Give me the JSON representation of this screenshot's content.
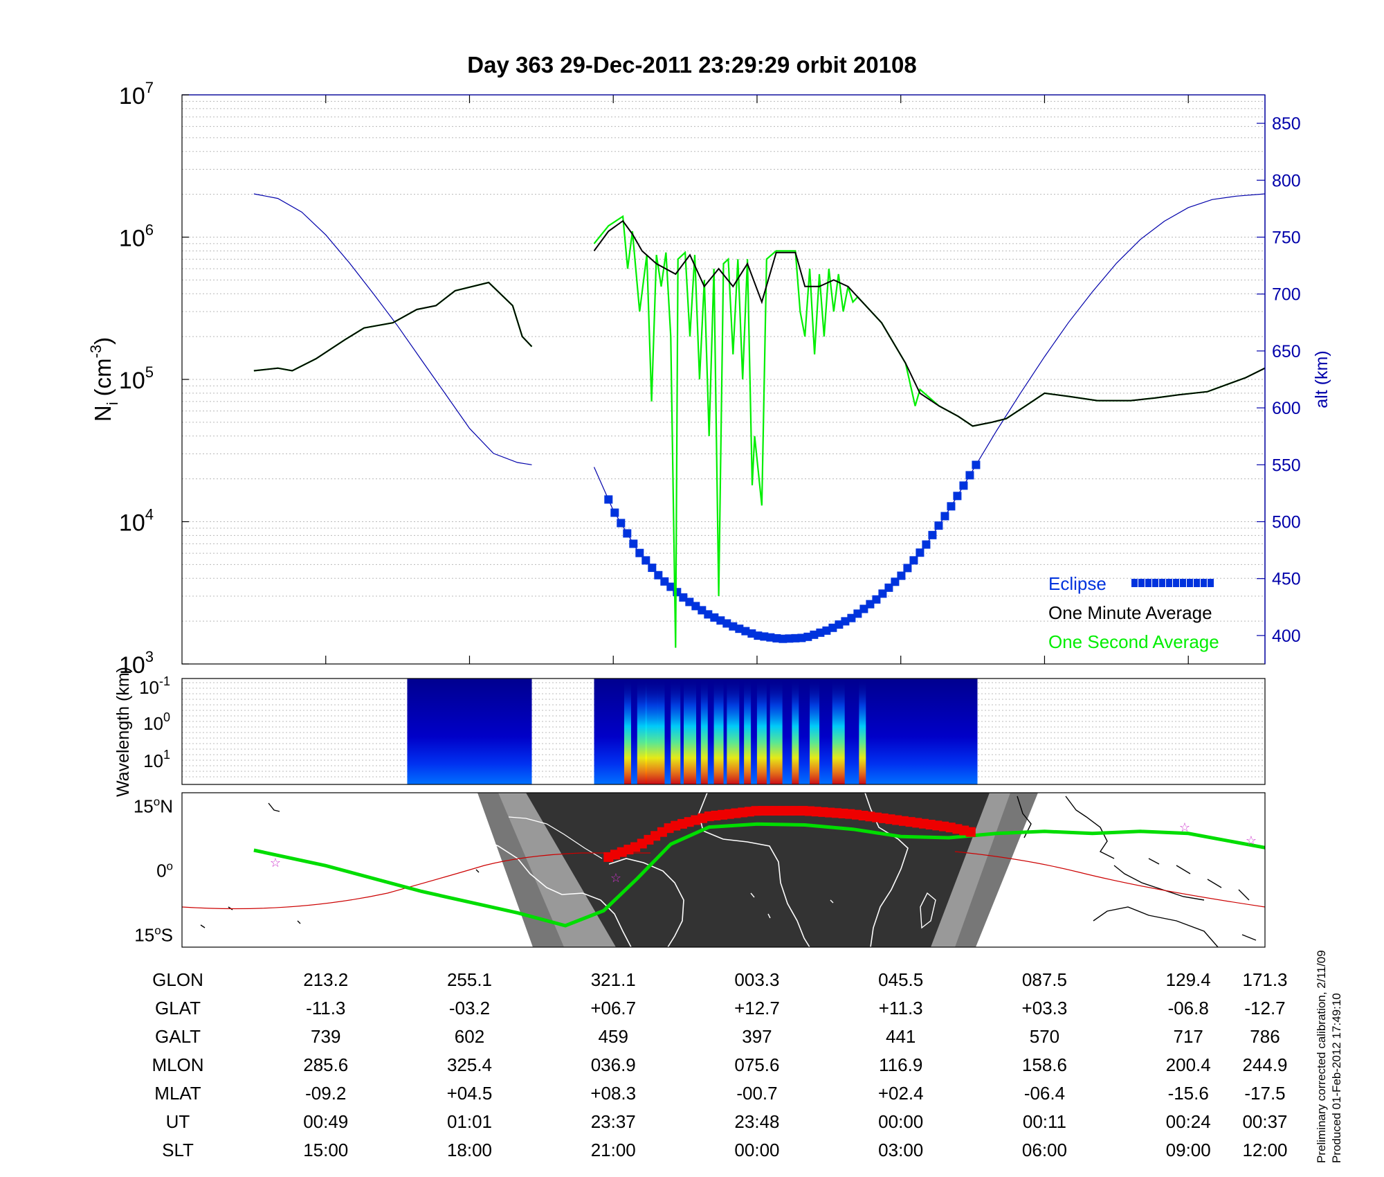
{
  "title": "Day 363  29-Dec-2011 23:29:29   orbit 20108",
  "chart_data": [
    {
      "type": "line",
      "yscale": "log",
      "ylabel": "N",
      "ylabel_sub": "i",
      "ylabel_unit_pre": "(cm",
      "ylabel_unit_sup": "-3",
      "ylabel_unit_post": ")",
      "ylim": [
        1000,
        10000000
      ],
      "y_ticks": [
        {
          "base": "10",
          "exp": "3"
        },
        {
          "base": "10",
          "exp": "4"
        },
        {
          "base": "10",
          "exp": "5"
        },
        {
          "base": "10",
          "exp": "6"
        },
        {
          "base": "10",
          "exp": "7"
        }
      ],
      "y2label": "alt (km)",
      "y2lim": [
        375,
        875
      ],
      "y2_ticks": [
        "400",
        "450",
        "500",
        "550",
        "600",
        "650",
        "700",
        "750",
        "800",
        "850"
      ],
      "x_ticks": [
        "15:00",
        "18:00",
        "21:00",
        "00:00",
        "03:00",
        "06:00",
        "09:00",
        "12:00"
      ],
      "legend_position": "bottom-right",
      "legend": [
        "Eclipse",
        "One Minute Average",
        "One Second Average"
      ],
      "colors": {
        "altitude": "#0000aa",
        "eclipse": "#0033dd",
        "minute_avg": "#000000",
        "second_avg": "#00ee00"
      },
      "series": [
        {
          "name": "One Minute Average",
          "segments": [
            [
              [
                13.5,
                115000.0
              ],
              [
                14.0,
                120000.0
              ],
              [
                14.3,
                115000.0
              ],
              [
                14.8,
                140000.0
              ],
              [
                15.4,
                190000.0
              ],
              [
                15.8,
                230000.0
              ],
              [
                16.4,
                250000.0
              ],
              [
                16.9,
                310000.0
              ],
              [
                17.3,
                330000.0
              ],
              [
                17.7,
                420000.0
              ],
              [
                18.4,
                480000.0
              ],
              [
                18.9,
                330000.0
              ],
              [
                19.1,
                200000.0
              ],
              [
                19.3,
                170000.0
              ]
            ],
            [
              [
                20.6,
                800000.0
              ],
              [
                20.9,
                1100000.0
              ],
              [
                21.2,
                1300000.0
              ],
              [
                21.4,
                1050000.0
              ],
              [
                21.6,
                800000.0
              ],
              [
                21.9,
                650000.0
              ],
              [
                22.3,
                550000.0
              ],
              [
                22.6,
                750000.0
              ],
              [
                22.9,
                450000.0
              ],
              [
                23.2,
                600000.0
              ],
              [
                23.5,
                450000.0
              ],
              [
                23.8,
                650000.0
              ],
              [
                24.1,
                350000.0
              ],
              [
                24.4,
                780000.0
              ],
              [
                24.8,
                780000.0
              ],
              [
                25.0,
                450000.0
              ],
              [
                25.3,
                450000.0
              ],
              [
                25.6,
                500000.0
              ],
              [
                25.9,
                450000.0
              ],
              [
                26.1,
                380000.0
              ],
              [
                26.6,
                250000.0
              ],
              [
                27.1,
                130000.0
              ],
              [
                27.4,
                80000.0
              ],
              [
                27.8,
                65000.0
              ],
              [
                28.2,
                55000.0
              ],
              [
                28.5,
                47000.0
              ],
              [
                28.9,
                50000.0
              ],
              [
                29.2,
                53000.0
              ],
              [
                29.6,
                65000.0
              ],
              [
                30.0,
                80000.0
              ],
              [
                30.5,
                76000.0
              ],
              [
                31.1,
                71000.0
              ],
              [
                31.8,
                71000.0
              ],
              [
                32.3,
                74000.0
              ],
              [
                32.8,
                78000.0
              ],
              [
                33.4,
                82000.0
              ],
              [
                34.2,
                103000.0
              ],
              [
                34.6,
                120000.0
              ]
            ]
          ]
        },
        {
          "name": "One Second Average",
          "segments": [
            [
              [
                13.5,
                115000.0
              ],
              [
                14.0,
                120000.0
              ],
              [
                14.3,
                115000.0
              ],
              [
                14.8,
                140000.0
              ],
              [
                15.4,
                190000.0
              ],
              [
                15.8,
                230000.0
              ],
              [
                16.4,
                250000.0
              ],
              [
                16.9,
                310000.0
              ],
              [
                17.3,
                330000.0
              ],
              [
                17.7,
                420000.0
              ],
              [
                18.4,
                480000.0
              ],
              [
                18.9,
                330000.0
              ],
              [
                19.1,
                200000.0
              ],
              [
                19.3,
                170000.0
              ]
            ],
            [
              [
                20.6,
                900000.0
              ],
              [
                20.9,
                1200000.0
              ],
              [
                21.2,
                1400000.0
              ],
              [
                21.3,
                600000.0
              ],
              [
                21.4,
                1100000.0
              ],
              [
                21.55,
                300000.0
              ],
              [
                21.7,
                750000.0
              ],
              [
                21.8,
                70000.0
              ],
              [
                21.9,
                750000.0
              ],
              [
                22.0,
                450000.0
              ],
              [
                22.1,
                780000.0
              ],
              [
                22.2,
                200000.0
              ],
              [
                22.3,
                1300.0
              ],
              [
                22.35,
                700000.0
              ],
              [
                22.5,
                780000.0
              ],
              [
                22.6,
                200000.0
              ],
              [
                22.7,
                750000.0
              ],
              [
                22.8,
                100000.0
              ],
              [
                22.9,
                500000.0
              ],
              [
                23.0,
                40000.0
              ],
              [
                23.1,
                600000.0
              ],
              [
                23.2,
                3000.0
              ],
              [
                23.3,
                650000.0
              ],
              [
                23.4,
                700000.0
              ],
              [
                23.5,
                150000.0
              ],
              [
                23.6,
                700000.0
              ],
              [
                23.7,
                100000.0
              ],
              [
                23.8,
                700000.0
              ],
              [
                23.9,
                18000.0
              ],
              [
                23.95,
                40000.0
              ],
              [
                24.1,
                13000.0
              ],
              [
                24.2,
                700000.0
              ],
              [
                24.4,
                800000.0
              ],
              [
                24.6,
                800000.0
              ],
              [
                24.8,
                800000.0
              ],
              [
                24.9,
                300000.0
              ],
              [
                25.0,
                200000.0
              ],
              [
                25.1,
                600000.0
              ],
              [
                25.2,
                150000.0
              ],
              [
                25.3,
                550000.0
              ],
              [
                25.4,
                200000.0
              ],
              [
                25.5,
                600000.0
              ],
              [
                25.6,
                300000.0
              ],
              [
                25.7,
                550000.0
              ],
              [
                25.8,
                300000.0
              ],
              [
                25.9,
                450000.0
              ],
              [
                26.0,
                350000.0
              ],
              [
                26.1,
                380000.0
              ],
              [
                26.6,
                250000.0
              ],
              [
                27.1,
                130000.0
              ],
              [
                27.3,
                65000.0
              ],
              [
                27.4,
                85000.0
              ],
              [
                27.8,
                65000.0
              ],
              [
                28.2,
                55000.0
              ],
              [
                28.5,
                47000.0
              ],
              [
                28.9,
                50000.0
              ],
              [
                29.2,
                53000.0
              ],
              [
                29.6,
                65000.0
              ],
              [
                30.0,
                80000.0
              ],
              [
                30.5,
                76000.0
              ],
              [
                31.1,
                71000.0
              ],
              [
                31.8,
                71000.0
              ],
              [
                32.3,
                74000.0
              ],
              [
                32.8,
                78000.0
              ],
              [
                33.4,
                82000.0
              ],
              [
                34.2,
                103000.0
              ],
              [
                34.6,
                120000.0
              ]
            ]
          ]
        }
      ],
      "altitude_km": {
        "segments": [
          [
            [
              13.5,
              788
            ],
            [
              14.0,
              784
            ],
            [
              14.5,
              772
            ],
            [
              15.0,
              752
            ],
            [
              15.5,
              727
            ],
            [
              16.0,
              700
            ],
            [
              16.5,
              672
            ],
            [
              17.0,
              642
            ],
            [
              17.5,
              612
            ],
            [
              18.0,
              582
            ],
            [
              18.5,
              560
            ],
            [
              19.0,
              552
            ],
            [
              19.3,
              550
            ]
          ],
          [
            [
              20.6,
              548
            ],
            [
              21.0,
              510
            ],
            [
              21.5,
              475
            ],
            [
              22.0,
              450
            ],
            [
              22.5,
              432
            ],
            [
              23.0,
              418
            ],
            [
              23.5,
              408
            ],
            [
              24.0,
              400
            ],
            [
              24.5,
              397
            ],
            [
              25.0,
              398
            ],
            [
              25.5,
              405
            ],
            [
              26.0,
              416
            ],
            [
              26.5,
              432
            ],
            [
              27.0,
              452
            ],
            [
              27.5,
              478
            ],
            [
              28.0,
              510
            ],
            [
              28.5,
              545
            ],
            [
              29.0,
              580
            ],
            [
              29.5,
              613
            ],
            [
              30.0,
              645
            ],
            [
              30.5,
              675
            ],
            [
              31.0,
              702
            ],
            [
              31.5,
              727
            ],
            [
              32.0,
              748
            ],
            [
              32.5,
              764
            ],
            [
              33.0,
              776
            ],
            [
              33.5,
              783
            ],
            [
              34.0,
              786
            ],
            [
              34.6,
              788
            ]
          ]
        ]
      },
      "eclipse_x_range": [
        20.9,
        28.6
      ]
    },
    {
      "type": "heatmap",
      "ylabel": "Wavelength (km)",
      "y_ticks": [
        {
          "base": "10",
          "exp": "-1"
        },
        {
          "base": "10",
          "exp": "0"
        },
        {
          "base": "10",
          "exp": "1"
        }
      ],
      "colored_x_ranges": [
        [
          16.7,
          19.3
        ],
        [
          20.6,
          28.6
        ]
      ],
      "bright_streak_x": [
        21.3,
        21.6,
        21.8,
        22.0,
        22.3,
        22.6,
        22.9,
        23.2,
        23.5,
        23.8,
        24.1,
        24.4,
        24.8,
        25.2,
        25.7,
        26.2
      ]
    },
    {
      "type": "map",
      "y_ticks": [
        {
          "num": "15",
          "unit": "N"
        },
        {
          "num": "0",
          "unit": ""
        },
        {
          "num": "15",
          "unit": "S"
        }
      ],
      "colors": {
        "night": "#333333",
        "twilight": "#777777",
        "satellite_track": "#00dd00",
        "eclipse_track": "#ee0000",
        "magnetic_equator": "#cc0000",
        "stars": "#cc33cc"
      },
      "satellite_track": [
        [
          13.5,
          4.6
        ],
        [
          15.0,
          1.0
        ],
        [
          17.0,
          -5.0
        ],
        [
          19.0,
          -10.0
        ],
        [
          20.0,
          -13.0
        ],
        [
          20.8,
          -9.5
        ],
        [
          21.5,
          -2.0
        ],
        [
          22.2,
          6.0
        ],
        [
          23.0,
          10.0
        ],
        [
          24.0,
          10.7
        ],
        [
          25.0,
          10.5
        ],
        [
          26.0,
          9.5
        ],
        [
          27.0,
          7.8
        ],
        [
          28.0,
          7.5
        ],
        [
          29.0,
          8.5
        ],
        [
          30.0,
          9.0
        ],
        [
          31.0,
          8.5
        ],
        [
          32.0,
          9.0
        ],
        [
          33.0,
          8.5
        ],
        [
          34.6,
          5.2
        ]
      ],
      "eclipse_track": [
        [
          20.9,
          3.0
        ],
        [
          21.5,
          5.5
        ],
        [
          22.2,
          10.0
        ],
        [
          23.0,
          12.5
        ],
        [
          24.0,
          13.8
        ],
        [
          25.0,
          13.8
        ],
        [
          26.0,
          13.0
        ],
        [
          27.0,
          11.5
        ],
        [
          28.0,
          10.0
        ],
        [
          28.6,
          8.5
        ]
      ]
    }
  ],
  "table": {
    "row_labels": [
      "GLON",
      "GLAT",
      "GALT",
      "MLON",
      "MLAT",
      "UT",
      "SLT"
    ],
    "columns": [
      [
        "213.2",
        "-11.3",
        "739",
        "285.6",
        "-09.2",
        "00:49",
        "15:00"
      ],
      [
        "255.1",
        "-03.2",
        "602",
        "325.4",
        "+04.5",
        "01:01",
        "18:00"
      ],
      [
        "321.1",
        "+06.7",
        "459",
        "036.9",
        "+08.3",
        "23:37",
        "21:00"
      ],
      [
        "003.3",
        "+12.7",
        "397",
        "075.6",
        "-00.7",
        "23:48",
        "00:00"
      ],
      [
        "045.5",
        "+11.3",
        "441",
        "116.9",
        "+02.4",
        "00:00",
        "03:00"
      ],
      [
        "087.5",
        "+03.3",
        "570",
        "158.6",
        "-06.4",
        "00:11",
        "06:00"
      ],
      [
        "129.4",
        "-06.8",
        "717",
        "200.4",
        "-15.6",
        "00:24",
        "09:00"
      ],
      [
        "171.3",
        "-12.7",
        "786",
        "244.9",
        "-17.5",
        "00:37",
        "12:00"
      ]
    ]
  },
  "side_notes": [
    "Preliminary corrected calibration, 2/11/09",
    "Produced 01-Feb-2012 17:49:10"
  ]
}
